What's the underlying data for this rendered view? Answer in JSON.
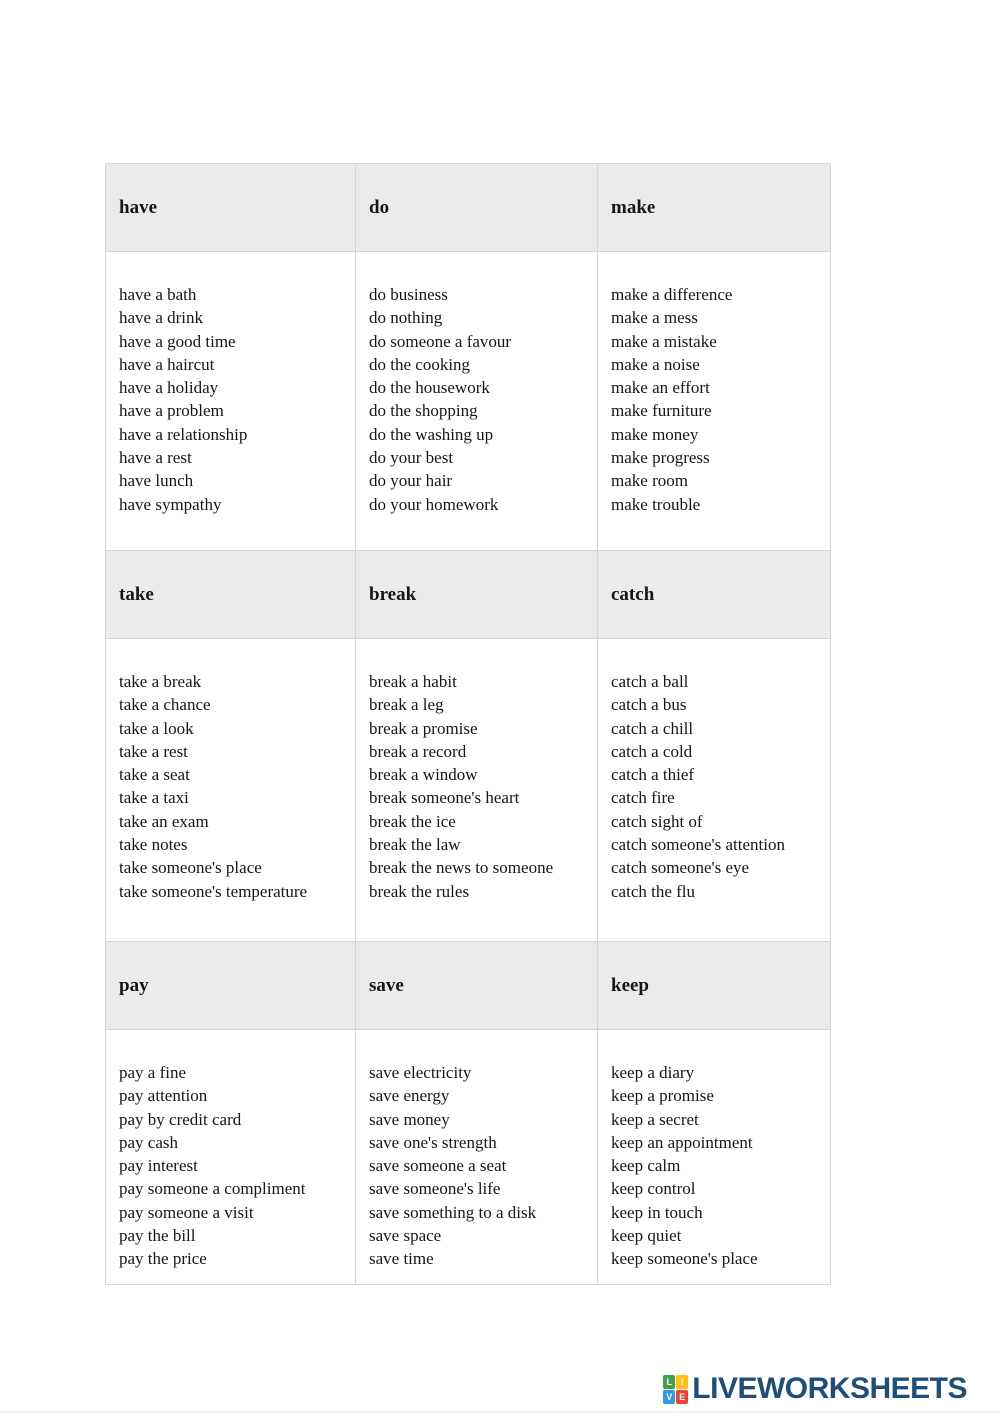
{
  "table": {
    "style": {
      "header_bg": "#ebebeb",
      "border_color": "#d6d6d6",
      "text_color": "#161616"
    },
    "sections": [
      {
        "headers": [
          "have",
          "do",
          "make"
        ],
        "columns": [
          [
            "have a bath",
            "have a drink",
            "have a good time",
            "have a haircut",
            "have a holiday",
            "have a problem",
            "have a relationship",
            "have a rest",
            "have lunch",
            "have sympathy"
          ],
          [
            "do business",
            "do nothing",
            "do someone a favour",
            "do the cooking",
            "do the housework",
            "do the shopping",
            "do the washing up",
            "do your best",
            "do your hair",
            "do your homework"
          ],
          [
            "make a difference",
            "make a mess",
            "make a mistake",
            "make a noise",
            "make an effort",
            "make furniture",
            "make money",
            "make progress",
            "make room",
            "make trouble"
          ]
        ]
      },
      {
        "headers": [
          "take",
          "break",
          "catch"
        ],
        "columns": [
          [
            "take a break",
            "take a chance",
            "take a look",
            "take a rest",
            "take a seat",
            "take a taxi",
            "take an exam",
            "take notes",
            "take someone's place",
            "take someone's temperature"
          ],
          [
            "break a habit",
            "break a leg",
            "break a promise",
            "break a record",
            "break a window",
            "break someone's heart",
            "break the ice",
            "break the law",
            "break the news to someone",
            "break the rules"
          ],
          [
            "catch a ball",
            "catch a bus",
            "catch a chill",
            "catch a cold",
            "catch a thief",
            "catch fire",
            "catch sight of",
            "catch someone's attention",
            "catch someone's eye",
            "catch the flu"
          ]
        ]
      },
      {
        "headers": [
          "pay",
          "save",
          "keep"
        ],
        "columns": [
          [
            "pay a fine",
            "pay attention",
            "pay by credit card",
            "pay cash",
            "pay interest",
            "pay someone a compliment",
            "pay someone a visit",
            "pay the bill",
            "pay the price"
          ],
          [
            "save electricity",
            "save energy",
            "save money",
            "save one's strength",
            "save someone a seat",
            "save someone's life",
            "save something to a disk",
            "save space",
            "save time"
          ],
          [
            "keep a diary",
            "keep a promise",
            "keep a secret",
            "keep an appointment",
            "keep calm",
            "keep control",
            "keep in touch",
            "keep quiet",
            "keep someone's place"
          ]
        ]
      }
    ]
  },
  "footer": {
    "brand": "LIVEWORKSHEETS",
    "brand_color": "#1e4e79",
    "logo_squares": [
      {
        "letter": "L",
        "color": "#43a047"
      },
      {
        "letter": "I",
        "color": "#fdc010"
      },
      {
        "letter": "V",
        "color": "#2e9be6"
      },
      {
        "letter": "E",
        "color": "#ef4136"
      }
    ]
  }
}
